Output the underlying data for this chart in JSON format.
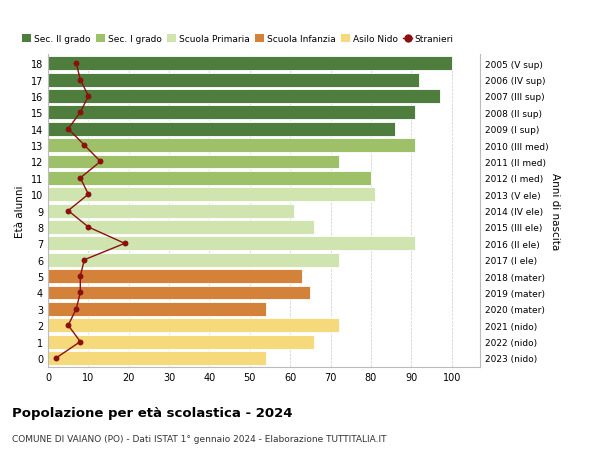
{
  "ages": [
    0,
    1,
    2,
    3,
    4,
    5,
    6,
    7,
    8,
    9,
    10,
    11,
    12,
    13,
    14,
    15,
    16,
    17,
    18
  ],
  "years": [
    "2023 (nido)",
    "2022 (nido)",
    "2021 (nido)",
    "2020 (mater)",
    "2019 (mater)",
    "2018 (mater)",
    "2017 (I ele)",
    "2016 (II ele)",
    "2015 (III ele)",
    "2014 (IV ele)",
    "2013 (V ele)",
    "2012 (I med)",
    "2011 (II med)",
    "2010 (III med)",
    "2009 (I sup)",
    "2008 (II sup)",
    "2007 (III sup)",
    "2006 (IV sup)",
    "2005 (V sup)"
  ],
  "bar_values": [
    54,
    66,
    72,
    54,
    65,
    63,
    72,
    91,
    66,
    61,
    81,
    80,
    72,
    91,
    86,
    91,
    97,
    92,
    100
  ],
  "bar_colors": [
    "#f5d97a",
    "#f5d97a",
    "#f5d97a",
    "#d4813a",
    "#d4813a",
    "#d4813a",
    "#d0e4b0",
    "#d0e4b0",
    "#d0e4b0",
    "#d0e4b0",
    "#d0e4b0",
    "#9dc068",
    "#9dc068",
    "#9dc068",
    "#4e7d3e",
    "#4e7d3e",
    "#4e7d3e",
    "#4e7d3e",
    "#4e7d3e"
  ],
  "stranieri_values": [
    2,
    8,
    5,
    7,
    8,
    8,
    9,
    19,
    10,
    5,
    10,
    8,
    13,
    9,
    5,
    8,
    10,
    8,
    7
  ],
  "legend_labels": [
    "Sec. II grado",
    "Sec. I grado",
    "Scuola Primaria",
    "Scuola Infanzia",
    "Asilo Nido",
    "Stranieri"
  ],
  "legend_colors": [
    "#4e7d3e",
    "#9dc068",
    "#d0e4b0",
    "#d4813a",
    "#f5d97a",
    "#8b0000"
  ],
  "ylabel": "Età alunni",
  "ylabel2": "Anni di nascita",
  "title": "Popolazione per età scolastica - 2024",
  "subtitle": "COMUNE DI VAIANO (PO) - Dati ISTAT 1° gennaio 2024 - Elaborazione TUTTITALIA.IT",
  "xlim": [
    0,
    107
  ],
  "background_color": "#ffffff",
  "bar_height": 0.85,
  "stranieri_color": "#8b1010",
  "grid_color": "#cccccc",
  "xticks": [
    0,
    10,
    20,
    30,
    40,
    50,
    60,
    70,
    80,
    90,
    100
  ]
}
